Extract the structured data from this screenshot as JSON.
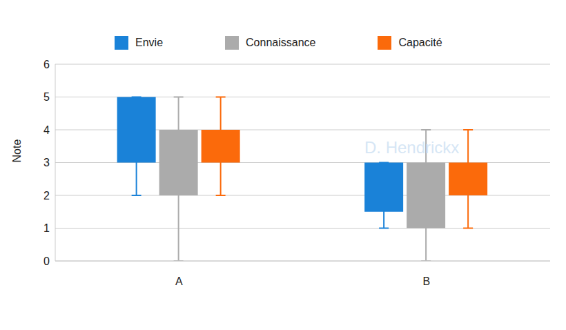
{
  "chart_data": {
    "type": "box",
    "y_label": "Note",
    "annotations": [
      "D. Hendrickx"
    ],
    "categories": [
      "A",
      "B"
    ],
    "series": [
      {
        "name": "Envie",
        "color": "#1a82d8",
        "min": [
          2,
          1
        ],
        "q1": [
          3,
          1.5
        ],
        "q3": [
          5,
          3
        ],
        "max": [
          5,
          3
        ]
      },
      {
        "name": "Connaissance",
        "color": "#ababab",
        "min": [
          0,
          0
        ],
        "q1": [
          2,
          1
        ],
        "q3": [
          4,
          3
        ],
        "max": [
          5,
          4
        ]
      },
      {
        "name": "Capacité",
        "color": "#fb6a0b",
        "min": [
          2,
          1
        ],
        "q1": [
          3,
          2
        ],
        "q3": [
          4,
          3
        ],
        "max": [
          5,
          4
        ]
      }
    ],
    "ylim": [
      0,
      6
    ],
    "yticks": [
      0,
      1,
      2,
      3,
      4,
      5,
      6
    ],
    "grid": true
  }
}
